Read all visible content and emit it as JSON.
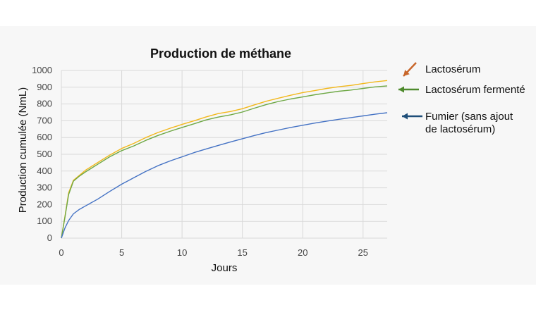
{
  "chart_data": {
    "type": "line",
    "title": "Production de méthane",
    "xlabel": "Jours",
    "ylabel": "Production cumulée (NmL)",
    "xlim": [
      0,
      27
    ],
    "ylim": [
      0,
      1000
    ],
    "xticks": [
      0,
      5,
      10,
      15,
      20,
      25
    ],
    "yticks": [
      0,
      100,
      200,
      300,
      400,
      500,
      600,
      700,
      800,
      900,
      1000
    ],
    "grid": true,
    "legend_placement": "right",
    "series": [
      {
        "name": "Lactosérum",
        "legend_lines": [
          "Lactosérum"
        ],
        "color": "#f2b81c",
        "arrow_color": "#c8662a",
        "x": [
          0,
          0.3,
          0.6,
          1,
          1.5,
          2,
          3,
          4,
          5,
          6,
          7,
          8,
          9,
          10,
          11,
          12,
          13,
          14,
          15,
          16,
          17,
          18,
          19,
          20,
          21,
          22,
          23,
          24,
          25,
          26,
          27
        ],
        "y": [
          0,
          130,
          270,
          345,
          375,
          405,
          450,
          495,
          535,
          565,
          600,
          630,
          655,
          678,
          700,
          723,
          743,
          755,
          772,
          795,
          817,
          835,
          852,
          868,
          880,
          893,
          903,
          911,
          922,
          932,
          940
        ]
      },
      {
        "name": "Lactosérum fermenté",
        "legend_lines": [
          "Lactosérum fermenté"
        ],
        "color": "#6ea845",
        "arrow_color": "#4e8a2c",
        "x": [
          0,
          0.3,
          0.6,
          1,
          1.5,
          2,
          3,
          4,
          5,
          6,
          7,
          8,
          9,
          10,
          11,
          12,
          13,
          14,
          15,
          16,
          17,
          18,
          19,
          20,
          21,
          22,
          23,
          24,
          25,
          26,
          27
        ],
        "y": [
          0,
          125,
          260,
          340,
          370,
          395,
          440,
          485,
          522,
          550,
          583,
          612,
          637,
          660,
          682,
          705,
          722,
          735,
          752,
          775,
          797,
          815,
          830,
          842,
          855,
          866,
          876,
          883,
          893,
          902,
          908
        ]
      },
      {
        "name": "Fumier (sans ajout de lactosérum)",
        "legend_lines": [
          "Fumier (sans ajout",
          "de lactosérum)"
        ],
        "color": "#4472c4",
        "arrow_color": "#1f4e79",
        "x": [
          0,
          0.3,
          0.6,
          1,
          1.5,
          2,
          3,
          4,
          5,
          6,
          7,
          8,
          9,
          10,
          11,
          12,
          13,
          14,
          15,
          16,
          17,
          18,
          19,
          20,
          21,
          22,
          23,
          24,
          25,
          26,
          27
        ],
        "y": [
          0,
          60,
          105,
          145,
          172,
          192,
          232,
          278,
          322,
          360,
          398,
          432,
          460,
          485,
          510,
          532,
          553,
          573,
          593,
          612,
          630,
          645,
          660,
          673,
          686,
          698,
          709,
          719,
          729,
          739,
          748
        ]
      }
    ]
  }
}
